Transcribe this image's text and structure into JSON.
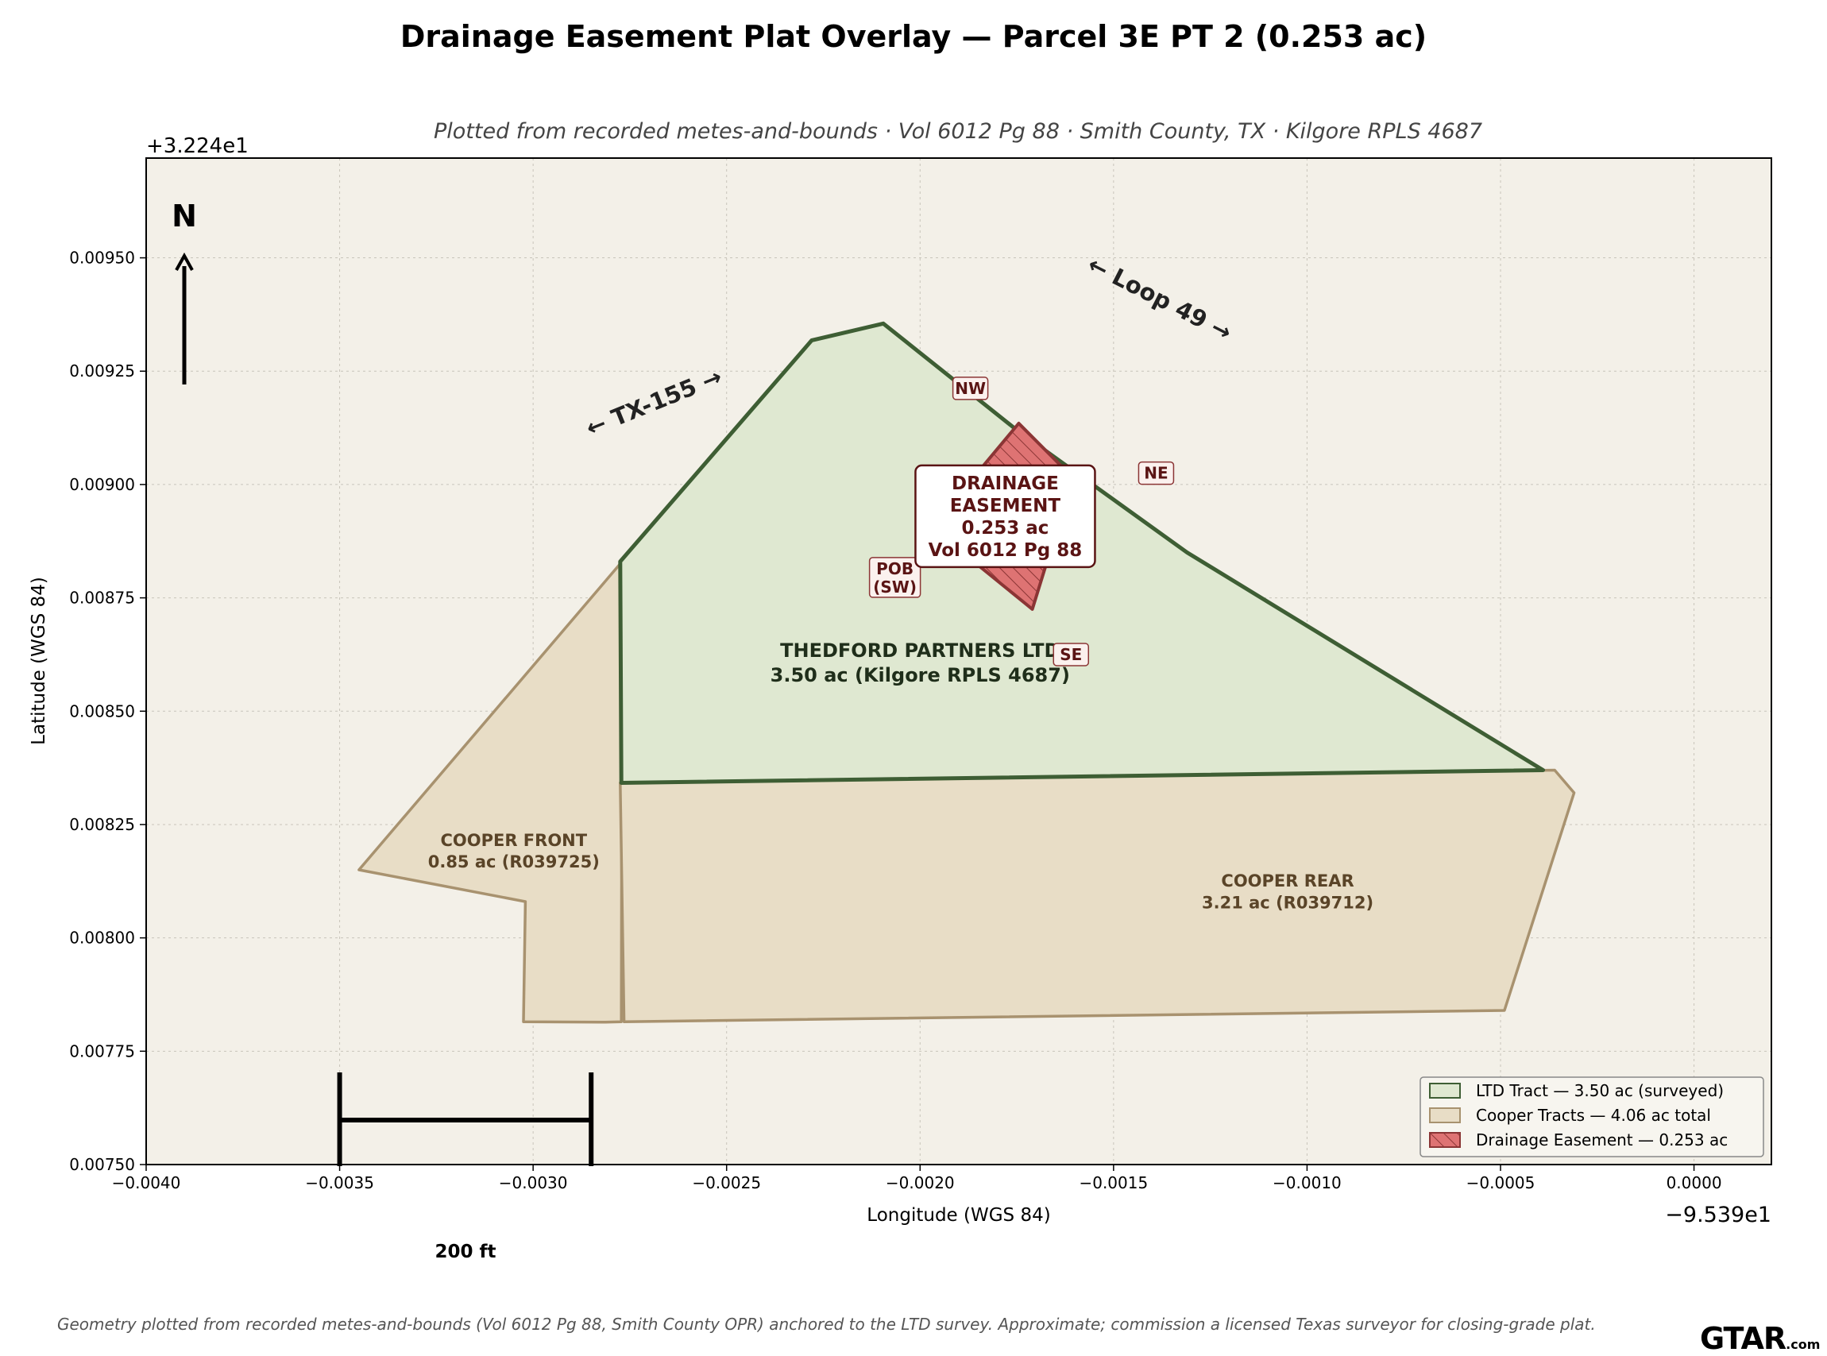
{
  "title": "Drainage Easement Plat Overlay — Parcel 3E PT 2 (0.253 ac)",
  "subtitle": "Plotted from recorded metes-and-bounds · Vol 6012 Pg 88 · Smith County, TX · Kilgore RPLS 4687",
  "footnote": "Geometry plotted from recorded metes-and-bounds (Vol 6012 Pg 88, Smith County OPR) anchored to the LTD survey. Approximate; commission a licensed Texas surveyor for closing-grade plat.",
  "logo": {
    "main": "GTAR",
    "suffix": ".com"
  },
  "axes": {
    "xlabel": "Longitude (WGS 84)",
    "ylabel": "Latitude (WGS 84)",
    "x_offset_label": "−9.539e1",
    "y_offset_label": "+3.224e1",
    "x_ticks": [
      {
        "value": -0.004,
        "label": "−0.0040"
      },
      {
        "value": -0.0035,
        "label": "−0.0035"
      },
      {
        "value": -0.003,
        "label": "−0.0030"
      },
      {
        "value": -0.0025,
        "label": "−0.0025"
      },
      {
        "value": -0.002,
        "label": "−0.0020"
      },
      {
        "value": -0.0015,
        "label": "−0.0015"
      },
      {
        "value": -0.001,
        "label": "−0.0010"
      },
      {
        "value": -0.0005,
        "label": "−0.0005"
      },
      {
        "value": 0.0,
        "label": "0.0000"
      }
    ],
    "y_ticks": [
      {
        "value": 0.0075,
        "label": "0.00750"
      },
      {
        "value": 0.00775,
        "label": "0.00775"
      },
      {
        "value": 0.008,
        "label": "0.00800"
      },
      {
        "value": 0.00825,
        "label": "0.00825"
      },
      {
        "value": 0.0085,
        "label": "0.00850"
      },
      {
        "value": 0.00875,
        "label": "0.00875"
      },
      {
        "value": 0.009,
        "label": "0.00900"
      },
      {
        "value": 0.00925,
        "label": "0.00925"
      },
      {
        "value": 0.0095,
        "label": "0.00950"
      }
    ],
    "xlim": [
      -0.004,
      0.0002
    ],
    "ylim": [
      0.0075,
      0.00972
    ],
    "grid": true
  },
  "colors": {
    "plot_bg": "#f3f0e8",
    "ltd_fill": "#dfe8d1",
    "ltd_edge": "#3e5e34",
    "cooper_fill": "#e8ddc6",
    "cooper_edge": "#a8926f",
    "easement_fill": "#de7373",
    "easement_edge": "#8b3535",
    "easement_text": "#5a1414",
    "parcel_text_ltd": "#1f2e1a",
    "parcel_text_cooper": "#5a4428"
  },
  "parcels": [
    {
      "id": "cooper-front",
      "label_line1": "COOPER FRONT",
      "label_line2": "0.85 ac (R039725)",
      "label_at": [
        -0.00305,
        0.00819
      ],
      "points": [
        [
          -0.00345,
          0.00815
        ],
        [
          -0.00277,
          0.00883
        ],
        [
          -0.002772,
          0.007815
        ],
        [
          -0.00282,
          0.007814
        ],
        [
          -0.003025,
          0.007815
        ],
        [
          -0.00302,
          0.00808
        ]
      ]
    },
    {
      "id": "cooper-rear",
      "label_line1": "COOPER REAR",
      "label_line2": "3.21 ac (R039712)",
      "label_at": [
        -0.00105,
        0.0081
      ],
      "points": [
        [
          -0.002775,
          0.008342
        ],
        [
          -0.00036,
          0.00837
        ],
        [
          -0.00031,
          0.00832
        ],
        [
          -0.00049,
          0.00784
        ],
        [
          -0.002765,
          0.007815
        ]
      ]
    },
    {
      "id": "ltd-tract",
      "label_line1": "THEDFORD PARTNERS LTD",
      "label_line2": "3.50 ac (Kilgore RPLS 4687)",
      "label_at": [
        -0.002,
        0.008605
      ],
      "points": [
        [
          -0.002775,
          0.00883
        ],
        [
          -0.00228,
          0.009318
        ],
        [
          -0.002095,
          0.009355
        ],
        [
          -0.00175,
          0.00912
        ],
        [
          -0.00131,
          0.00885
        ],
        [
          -0.00039,
          0.00837
        ],
        [
          -0.002772,
          0.008342
        ]
      ]
    }
  ],
  "easement": {
    "points": [
      [
        -0.001745,
        0.009135
      ],
      [
        -0.001605,
        0.009015
      ],
      [
        -0.00171,
        0.008725
      ],
      [
        -0.00197,
        0.008905
      ]
    ],
    "callout_lines": [
      "DRAINAGE",
      "EASEMENT",
      "0.253 ac",
      "Vol 6012 Pg 88"
    ],
    "callout_at": [
      -0.00178,
      0.00893
    ],
    "corners": [
      {
        "text": "NW",
        "at": [
          -0.00187,
          0.009212
        ]
      },
      {
        "text": "NE",
        "at": [
          -0.00139,
          0.009025
        ]
      },
      {
        "text": "SE",
        "at": [
          -0.00161,
          0.008625
        ]
      },
      {
        "text": "POB",
        "text2": "(SW)",
        "at": [
          -0.002065,
          0.008795
        ]
      }
    ]
  },
  "roads": [
    {
      "text": "← TX-155 →",
      "at": [
        -0.00268,
        0.009165
      ],
      "angle": -22
    },
    {
      "text": "← Loop 49 →",
      "at": [
        -0.00139,
        0.009395
      ],
      "angle": 27
    }
  ],
  "north_arrow": {
    "label": "N"
  },
  "scale_bar": {
    "label": "200 ft",
    "from": -0.0035,
    "to": -0.00285
  },
  "legend": {
    "position": "lower-right",
    "items": [
      {
        "label": "LTD Tract — 3.50 ac (surveyed)",
        "swatch": "ltd"
      },
      {
        "label": "Cooper Tracts — 4.06 ac total",
        "swatch": "cooper"
      },
      {
        "label": "Drainage Easement — 0.253 ac",
        "swatch": "easement"
      }
    ]
  }
}
